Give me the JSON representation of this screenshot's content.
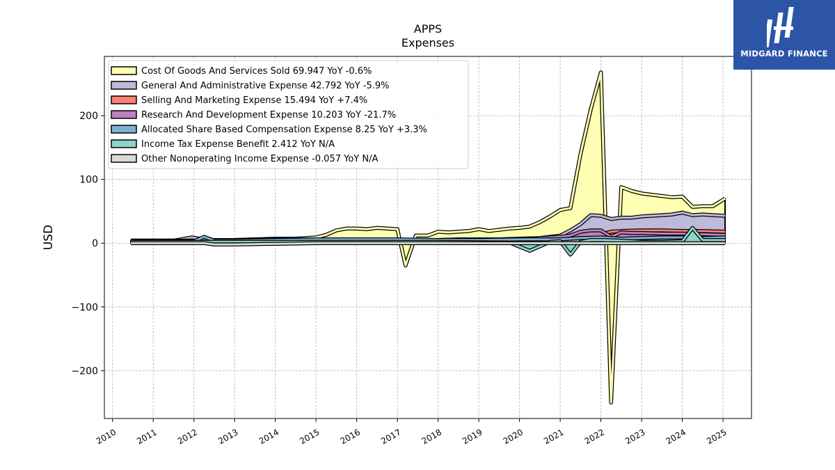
{
  "chart_data": {
    "type": "area",
    "title": "APPS",
    "subtitle": "Expenses",
    "xlabel": "",
    "ylabel": "USD",
    "xlim": [
      2009.8,
      2025.7
    ],
    "ylim": [
      -275,
      293
    ],
    "x_ticks": [
      "2010",
      "2011",
      "2012",
      "2013",
      "2014",
      "2015",
      "2016",
      "2017",
      "2018",
      "2019",
      "2020",
      "2021",
      "2022",
      "2023",
      "2024",
      "2025"
    ],
    "y_ticks": [
      -200,
      -100,
      0,
      100,
      200
    ],
    "y_tick_labels": [
      "−200",
      "−100",
      "0",
      "100",
      "200"
    ],
    "grid": true,
    "legend_position": "top-left",
    "series": [
      {
        "name": "Cost Of Goods And Services Sold",
        "legend": "Cost Of Goods And Services Sold  69.947 YoY -0.6%",
        "color": "#ffffb3",
        "x": [
          2010.45,
          2011.0,
          2011.5,
          2012.0,
          2012.5,
          2013.0,
          2013.5,
          2014.0,
          2014.5,
          2015.0,
          2015.25,
          2015.5,
          2015.75,
          2016.0,
          2016.25,
          2016.5,
          2016.75,
          2017.0,
          2017.2,
          2017.45,
          2017.75,
          2018.0,
          2018.25,
          2018.5,
          2018.75,
          2019.0,
          2019.25,
          2019.5,
          2019.75,
          2020.0,
          2020.25,
          2020.5,
          2020.75,
          2021.0,
          2021.25,
          2021.5,
          2021.75,
          2022.0,
          2022.25,
          2022.5,
          2022.75,
          2023.0,
          2023.25,
          2023.5,
          2023.75,
          2024.0,
          2024.25,
          2024.5,
          2024.75,
          2025.05
        ],
        "values": [
          4,
          4,
          4,
          4,
          4,
          5,
          6,
          7,
          7,
          9,
          13,
          20,
          23,
          23,
          22,
          24,
          23,
          22,
          -35,
          12,
          12,
          18,
          17,
          18,
          19,
          22,
          19,
          21,
          23,
          24,
          26,
          33,
          42,
          52,
          55,
          140,
          210,
          268,
          -250,
          88,
          82,
          78,
          76,
          74,
          72,
          73,
          57,
          58,
          58,
          70
        ]
      },
      {
        "name": "General And Administrative Expense",
        "legend": "General And Administrative Expense  42.792 YoY -5.9%",
        "color": "#bebada",
        "x": [
          2010.45,
          2011.0,
          2011.5,
          2011.95,
          2012.25,
          2012.5,
          2013.0,
          2013.5,
          2014.0,
          2014.5,
          2015.0,
          2015.5,
          2016.0,
          2016.5,
          2017.0,
          2017.5,
          2018.0,
          2018.5,
          2019.0,
          2019.5,
          2020.0,
          2020.5,
          2021.0,
          2021.25,
          2021.5,
          2021.75,
          2022.0,
          2022.25,
          2022.5,
          2022.75,
          2023.0,
          2023.5,
          2023.75,
          2024.0,
          2024.25,
          2024.5,
          2024.75,
          2025.05
        ],
        "values": [
          4,
          4,
          4,
          9,
          6,
          5,
          5,
          6,
          6,
          6,
          6,
          6,
          6,
          6,
          5,
          5,
          5,
          6,
          6,
          6,
          7,
          8,
          12,
          20,
          30,
          44,
          43,
          38,
          40,
          40,
          42,
          44,
          45,
          48,
          44,
          45,
          44,
          43
        ]
      },
      {
        "name": "Selling And Marketing Expense",
        "legend": "Selling And Marketing Expense  15.494 YoY +7.4%",
        "color": "#fb8072",
        "x": [
          2010.45,
          2012.0,
          2014.0,
          2016.0,
          2018.0,
          2020.0,
          2021.0,
          2021.5,
          2021.75,
          2022.0,
          2022.25,
          2022.5,
          2023.0,
          2023.5,
          2024.0,
          2024.5,
          2025.05
        ],
        "values": [
          4,
          4,
          5,
          5,
          5,
          6,
          8,
          10,
          12,
          14,
          18,
          19,
          20,
          20,
          19,
          19,
          18
        ]
      },
      {
        "name": "Research And Development Expense",
        "legend": "Research And Development Expense  10.203 YoY -21.7%",
        "color": "#bc80bd",
        "x": [
          2010.45,
          2012.0,
          2014.0,
          2016.0,
          2018.0,
          2020.0,
          2020.5,
          2021.0,
          2021.25,
          2021.5,
          2021.75,
          2022.0,
          2022.25,
          2022.5,
          2022.75,
          2023.0,
          2023.5,
          2024.0,
          2024.5,
          2025.05
        ],
        "values": [
          4,
          4,
          5,
          5,
          5,
          6,
          8,
          10,
          12,
          18,
          20,
          20,
          10,
          17,
          16,
          16,
          15,
          15,
          14,
          13
        ]
      },
      {
        "name": "Allocated Share Based Compensation Expense",
        "legend": "Allocated Share Based Compensation Expense  8.25 YoY +3.3%",
        "color": "#80b1d3",
        "x": [
          2010.45,
          2011.75,
          2012.0,
          2012.25,
          2012.5,
          2013.0,
          2014.0,
          2015.0,
          2016.0,
          2017.0,
          2018.0,
          2019.0,
          2020.0,
          2021.0,
          2021.5,
          2022.0,
          2022.5,
          2023.0,
          2023.5,
          2024.0,
          2024.5,
          2025.05
        ],
        "values": [
          3,
          3,
          3,
          10,
          4,
          4,
          5,
          6,
          6,
          6,
          5,
          5,
          6,
          6,
          8,
          9,
          7,
          8,
          9,
          9,
          8,
          9
        ]
      },
      {
        "name": "Income Tax Expense Benefit",
        "legend": "Income Tax Expense Benefit  2.412 YoY N/A",
        "color": "#8dd3c7",
        "x": [
          2010.45,
          2012.0,
          2014.0,
          2016.0,
          2018.0,
          2019.75,
          2020.25,
          2020.75,
          2021.0,
          2021.25,
          2021.5,
          2021.75,
          2022.0,
          2022.5,
          2023.0,
          2023.5,
          2024.0,
          2024.25,
          2024.5,
          2025.05
        ],
        "values": [
          2,
          2,
          2,
          2,
          2,
          1,
          -12,
          2,
          3,
          -18,
          2,
          5,
          5,
          4,
          2,
          2,
          3,
          24,
          5,
          5
        ]
      },
      {
        "name": "Other Nonoperating Income Expense",
        "legend": "Other Nonoperating Income Expense  -0.057 YoY N/A",
        "color": "#d9d9d9",
        "x": [
          2010.45,
          2011.5,
          2012.25,
          2012.5,
          2013.0,
          2014.0,
          2015.0,
          2016.0,
          2017.0,
          2018.0,
          2019.0,
          2020.0,
          2021.0,
          2022.0,
          2023.0,
          2024.0,
          2025.05
        ],
        "values": [
          0,
          0,
          0,
          -2,
          -2,
          -1,
          0,
          0,
          0,
          0,
          0,
          0,
          0,
          0,
          0,
          0,
          0
        ]
      }
    ]
  },
  "logo": {
    "brand_text": "MIDGARD FINANCE"
  }
}
